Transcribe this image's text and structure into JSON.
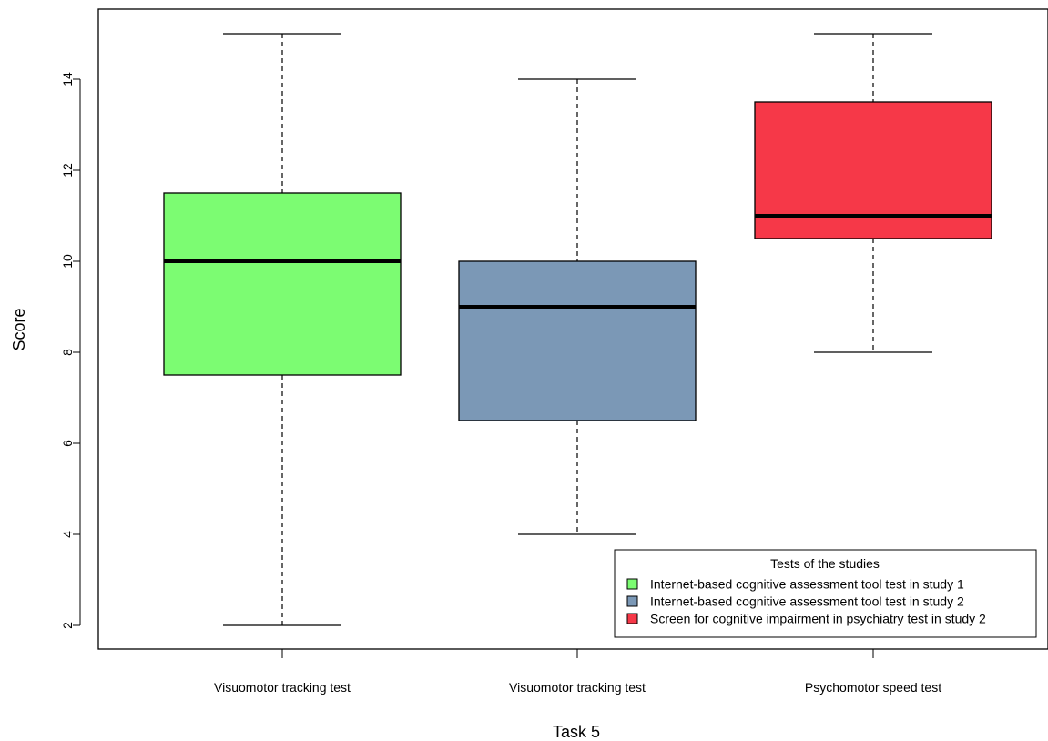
{
  "chart_data": {
    "type": "box",
    "title": "",
    "xlabel": "Task 5",
    "ylabel": "Score",
    "ylim": [
      1.5,
      15.5
    ],
    "yticks": [
      2,
      4,
      6,
      8,
      10,
      12,
      14
    ],
    "grid": false,
    "categories": [
      "Visuomotor tracking test",
      "Visuomotor tracking test",
      "Psychomotor speed test"
    ],
    "boxes": [
      {
        "category": "Visuomotor tracking test",
        "min": 2,
        "q1": 7.5,
        "median": 10,
        "q3": 11.5,
        "max": 15,
        "color": "#7CFC72"
      },
      {
        "category": "Visuomotor tracking test",
        "min": 4,
        "q1": 6.5,
        "median": 9,
        "q3": 10,
        "max": 14,
        "color": "#7B98B6"
      },
      {
        "category": "Psychomotor speed test",
        "min": 8,
        "q1": 10.5,
        "median": 11,
        "q3": 13.5,
        "max": 15,
        "color": "#F63848"
      }
    ],
    "legend": {
      "title": "Tests of the studies",
      "position": "bottom-right",
      "entries": [
        {
          "label": "Internet-based cognitive assessment tool test in study 1",
          "color": "#7CFC72"
        },
        {
          "label": "Internet-based cognitive assessment tool test in study 2",
          "color": "#7B98B6"
        },
        {
          "label": "Screen for cognitive impairment in psychiatry test in study 2",
          "color": "#F63848"
        }
      ]
    }
  }
}
